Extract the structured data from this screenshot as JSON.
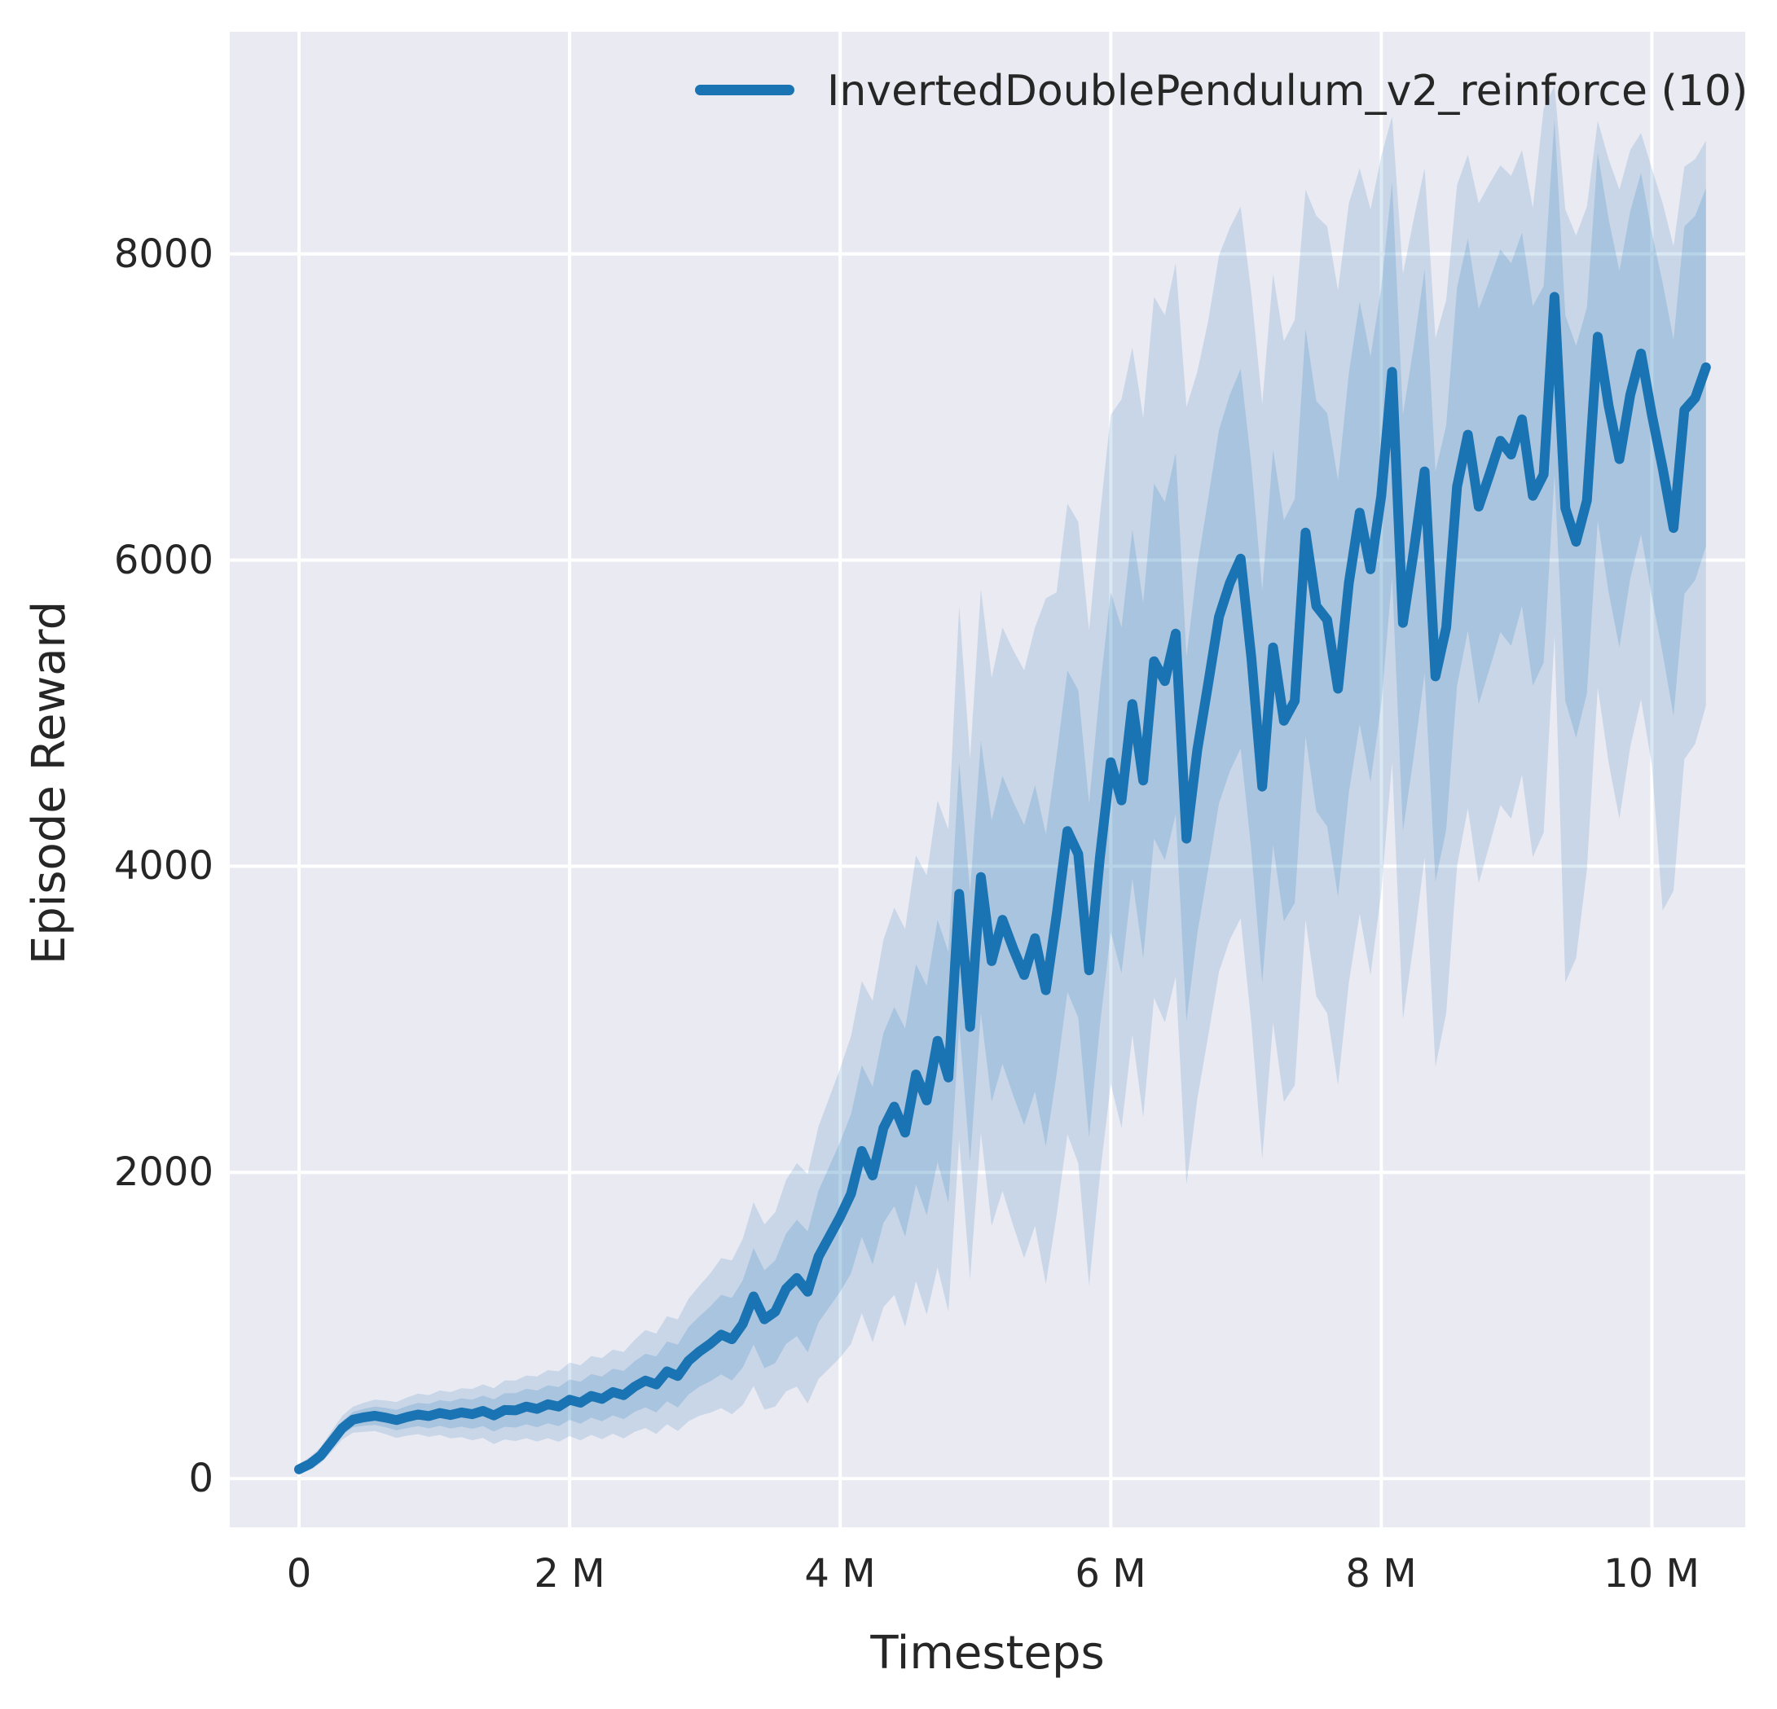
{
  "figure": {
    "background_color": "#ffffff",
    "plot_background_color": "#eaeaf2",
    "gridline_color": "#ffffff",
    "text_color": "#262626"
  },
  "legend": {
    "label": "InvertedDoublePendulum_v2_reinforce (10)",
    "swatch_color": "#1a73b2"
  },
  "chart_data": {
    "type": "line",
    "title": "",
    "xlabel": "Timesteps",
    "ylabel": "Episode Reward",
    "x_unit": "millions of timesteps",
    "grid": true,
    "legend_position": "upper center inside axes",
    "xlim": [
      -0.512,
      10.69
    ],
    "ylim": [
      -319,
      9452
    ],
    "x_ticks": [
      {
        "value": 0,
        "label": "0"
      },
      {
        "value": 2,
        "label": "2 M"
      },
      {
        "value": 4,
        "label": "4 M"
      },
      {
        "value": 6,
        "label": "6 M"
      },
      {
        "value": 8,
        "label": "8 M"
      },
      {
        "value": 10,
        "label": "10 M"
      }
    ],
    "y_ticks": [
      {
        "value": 0,
        "label": "0"
      },
      {
        "value": 2000,
        "label": "2000"
      },
      {
        "value": 4000,
        "label": "4000"
      },
      {
        "value": 6000,
        "label": "6000"
      },
      {
        "value": 8000,
        "label": "8000"
      }
    ],
    "series": [
      {
        "name": "InvertedDoublePendulum_v2_reinforce (10)",
        "color": "#1a73b2",
        "line_width": 12,
        "band_inner_alpha": 0.18,
        "band_outer_alpha": 0.16,
        "x": [
          0,
          0.08,
          0.16,
          0.24,
          0.32,
          0.4,
          0.48,
          0.56,
          0.64,
          0.72,
          0.8,
          0.88,
          0.96,
          1.04,
          1.12,
          1.2,
          1.28,
          1.36,
          1.44,
          1.52,
          1.6,
          1.68,
          1.76,
          1.84,
          1.92,
          2,
          2.08,
          2.16,
          2.24,
          2.32,
          2.4,
          2.48,
          2.56,
          2.64,
          2.72,
          2.8,
          2.88,
          2.96,
          3.04,
          3.12,
          3.2,
          3.28,
          3.36,
          3.44,
          3.52,
          3.6,
          3.68,
          3.76,
          3.84,
          3.92,
          4,
          4.08,
          4.16,
          4.24,
          4.32,
          4.4,
          4.48,
          4.56,
          4.64,
          4.72,
          4.8,
          4.88,
          4.96,
          5.04,
          5.12,
          5.2,
          5.28,
          5.36,
          5.44,
          5.52,
          5.6,
          5.68,
          5.76,
          5.84,
          5.92,
          6,
          6.08,
          6.16,
          6.24,
          6.32,
          6.4,
          6.48,
          6.56,
          6.64,
          6.72,
          6.8,
          6.88,
          6.96,
          7.04,
          7.12,
          7.2,
          7.28,
          7.36,
          7.44,
          7.52,
          7.6,
          7.68,
          7.76,
          7.84,
          7.92,
          8,
          8.08,
          8.16,
          8.24,
          8.32,
          8.4,
          8.48,
          8.56,
          8.64,
          8.72,
          8.8,
          8.88,
          8.96,
          9.04,
          9.12,
          9.2,
          9.28,
          9.36,
          9.44,
          9.52,
          9.6,
          9.68,
          9.76,
          9.84,
          9.92,
          10,
          10.08,
          10.16,
          10.24,
          10.32,
          10.4
        ],
        "mean": [
          60,
          95,
          150,
          240,
          330,
          385,
          400,
          410,
          398,
          382,
          402,
          418,
          408,
          428,
          415,
          432,
          420,
          442,
          412,
          448,
          445,
          470,
          455,
          485,
          470,
          515,
          495,
          540,
          520,
          565,
          545,
          600,
          640,
          615,
          700,
          670,
          770,
          830,
          880,
          940,
          910,
          1010,
          1190,
          1040,
          1090,
          1240,
          1310,
          1220,
          1450,
          1580,
          1710,
          1860,
          2140,
          1980,
          2290,
          2430,
          2260,
          2640,
          2470,
          2860,
          2620,
          3820,
          2950,
          3930,
          3380,
          3650,
          3460,
          3290,
          3530,
          3190,
          3680,
          4230,
          4080,
          3320,
          4060,
          4680,
          4430,
          5060,
          4560,
          5340,
          5210,
          5520,
          4180,
          4760,
          5190,
          5630,
          5850,
          6010,
          5360,
          4520,
          5430,
          4950,
          5080,
          6180,
          5700,
          5610,
          5160,
          5850,
          6310,
          5940,
          6420,
          7230,
          5590,
          6060,
          6580,
          5240,
          5560,
          6480,
          6820,
          6350,
          6560,
          6780,
          6690,
          6920,
          6420,
          6560,
          7720,
          6340,
          6120,
          6390,
          7460,
          7010,
          6660,
          7080,
          7350,
          6950,
          6600,
          6210,
          6980,
          7060,
          7260
        ],
        "band_inner_low": [
          40,
          70,
          120,
          200,
          285,
          335,
          345,
          350,
          335,
          315,
          330,
          342,
          328,
          344,
          327,
          340,
          325,
          342,
          307,
          338,
          333,
          354,
          335,
          361,
          342,
          383,
          358,
          398,
          374,
          413,
          387,
          435,
          465,
          432,
          505,
          465,
          550,
          600,
          635,
          680,
          640,
          725,
          875,
          720,
          755,
          880,
          930,
          825,
          1020,
          1120,
          1220,
          1340,
          1580,
          1400,
          1670,
          1780,
          1580,
          1920,
          1720,
          2070,
          1800,
          2960,
          2070,
          3040,
          2460,
          2710,
          2500,
          2310,
          2530,
          2170,
          2640,
          3180,
          3010,
          2230,
          2960,
          3570,
          3300,
          3920,
          3400,
          4180,
          4040,
          4340,
          2990,
          3560,
          3980,
          4410,
          4620,
          4770,
          4100,
          3240,
          4140,
          3640,
          3760,
          4850,
          4360,
          4260,
          3800,
          4480,
          4930,
          4550,
          5060,
          5890,
          4230,
          4720,
          5260,
          3900,
          4240,
          5180,
          5540,
          5060,
          5290,
          5530,
          5440,
          5700,
          5180,
          5330,
          6560,
          5080,
          4840,
          5130,
          6260,
          5790,
          5430,
          5880,
          6170,
          5760,
          5390,
          4980,
          5780,
          5870,
          6090
        ],
        "band_inner_high": [
          80,
          120,
          180,
          280,
          375,
          435,
          455,
          470,
          461,
          449,
          474,
          494,
          488,
          512,
          503,
          524,
          515,
          542,
          517,
          558,
          557,
          586,
          575,
          609,
          598,
          647,
          632,
          682,
          666,
          717,
          703,
          765,
          815,
          798,
          895,
          875,
          990,
          1060,
          1125,
          1200,
          1180,
          1295,
          1505,
          1360,
          1425,
          1600,
          1690,
          1615,
          1880,
          2040,
          2200,
          2380,
          2700,
          2560,
          2910,
          3080,
          2940,
          3360,
          3220,
          3650,
          3440,
          4680,
          3830,
          4820,
          4300,
          4590,
          4420,
          4270,
          4530,
          4210,
          4720,
          5280,
          5150,
          4410,
          5160,
          5790,
          5560,
          6200,
          5720,
          6500,
          6380,
          6700,
          5370,
          5960,
          6400,
          6850,
          7080,
          7250,
          6620,
          5800,
          6720,
          6260,
          6400,
          7510,
          7040,
          6960,
          6520,
          7220,
          7690,
          7330,
          7780,
          8470,
          6950,
          7400,
          7900,
          6580,
          6880,
          7780,
          8100,
          7640,
          7830,
          8030,
          7940,
          8140,
          7660,
          7790,
          8880,
          7600,
          7400,
          7650,
          8660,
          8230,
          7890,
          8280,
          8530,
          8140,
          7810,
          7440,
          8180,
          8250,
          8430
        ],
        "band_outer_low": [
          30,
          55,
          100,
          175,
          255,
          300,
          305,
          310,
          290,
          265,
          280,
          290,
          272,
          285,
          262,
          270,
          250,
          265,
          225,
          255,
          245,
          263,
          242,
          263,
          240,
          277,
          250,
          285,
          257,
          293,
          262,
          305,
          330,
          292,
          355,
          310,
          375,
          410,
          430,
          460,
          420,
          480,
          605,
          450,
          470,
          570,
          600,
          490,
          650,
          720,
          790,
          880,
          1080,
          890,
          1120,
          1200,
          990,
          1290,
          1070,
          1380,
          1090,
          2210,
          1300,
          2260,
          1650,
          1880,
          1650,
          1440,
          1650,
          1270,
          1720,
          2250,
          2060,
          1260,
          1980,
          2580,
          2290,
          2900,
          2360,
          3140,
          2980,
          3280,
          1920,
          2480,
          2890,
          3310,
          3520,
          3660,
          2970,
          2090,
          2980,
          2460,
          2570,
          3650,
          3150,
          3040,
          2570,
          3240,
          3690,
          3290,
          3830,
          4680,
          3000,
          3500,
          4060,
          2690,
          3040,
          4000,
          4380,
          3890,
          4140,
          4400,
          4310,
          4600,
          4060,
          4220,
          5510,
          3240,
          3400,
          3980,
          5170,
          4680,
          4310,
          4780,
          5090,
          4660,
          3710,
          3840,
          4700,
          4800,
          5050
        ],
        "band_outer_high": [
          95,
          140,
          205,
          310,
          410,
          470,
          495,
          515,
          510,
          500,
          530,
          555,
          545,
          575,
          565,
          590,
          585,
          615,
          590,
          640,
          640,
          673,
          667,
          708,
          700,
          757,
          740,
          800,
          787,
          843,
          827,
          905,
          970,
          947,
          1060,
          1040,
          1175,
          1260,
          1340,
          1440,
          1425,
          1565,
          1805,
          1660,
          1740,
          1950,
          2060,
          1990,
          2300,
          2490,
          2680,
          2890,
          3250,
          3120,
          3520,
          3730,
          3590,
          4070,
          3940,
          4430,
          4240,
          5700,
          4700,
          5810,
          5230,
          5560,
          5410,
          5280,
          5560,
          5750,
          5790,
          6370,
          6250,
          5540,
          6290,
          6950,
          7050,
          7390,
          6930,
          7720,
          7600,
          7940,
          7000,
          7230,
          7560,
          7990,
          8170,
          8310,
          7740,
          7020,
          7870,
          7430,
          7570,
          8420,
          8250,
          8180,
          7760,
          8330,
          8560,
          8290,
          8640,
          8900,
          7870,
          8230,
          8560,
          7450,
          7700,
          8450,
          8650,
          8330,
          8460,
          8580,
          8510,
          8680,
          8300,
          8950,
          9100,
          8290,
          8120,
          8310,
          8870,
          8620,
          8420,
          8680,
          8790,
          8560,
          8330,
          8050,
          8570,
          8620,
          8740
        ]
      }
    ]
  }
}
